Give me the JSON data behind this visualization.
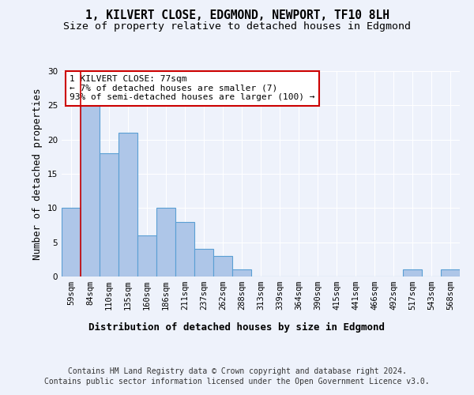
{
  "title": "1, KILVERT CLOSE, EDGMOND, NEWPORT, TF10 8LH",
  "subtitle": "Size of property relative to detached houses in Edgmond",
  "xlabel": "Distribution of detached houses by size in Edgmond",
  "ylabel": "Number of detached properties",
  "categories": [
    "59sqm",
    "84sqm",
    "110sqm",
    "135sqm",
    "160sqm",
    "186sqm",
    "211sqm",
    "237sqm",
    "262sqm",
    "288sqm",
    "313sqm",
    "339sqm",
    "364sqm",
    "390sqm",
    "415sqm",
    "441sqm",
    "466sqm",
    "492sqm",
    "517sqm",
    "543sqm",
    "568sqm"
  ],
  "values": [
    10,
    25,
    18,
    21,
    6,
    10,
    8,
    4,
    3,
    1,
    0,
    0,
    0,
    0,
    0,
    0,
    0,
    0,
    1,
    0,
    1
  ],
  "bar_color": "#aec6e8",
  "bar_edgecolor": "#5a9fd4",
  "bar_linewidth": 0.8,
  "ylim": [
    0,
    30
  ],
  "yticks": [
    0,
    5,
    10,
    15,
    20,
    25,
    30
  ],
  "vline_x": 0.5,
  "vline_color": "#cc0000",
  "annotation_text": "1 KILVERT CLOSE: 77sqm\n← 7% of detached houses are smaller (7)\n93% of semi-detached houses are larger (100) →",
  "annotation_box_color": "#ffffff",
  "annotation_box_edgecolor": "#cc0000",
  "footer_line1": "Contains HM Land Registry data © Crown copyright and database right 2024.",
  "footer_line2": "Contains public sector information licensed under the Open Government Licence v3.0.",
  "background_color": "#eef2fb",
  "grid_color": "#ffffff",
  "title_fontsize": 10.5,
  "subtitle_fontsize": 9.5,
  "xlabel_fontsize": 9,
  "ylabel_fontsize": 9,
  "tick_fontsize": 7.5,
  "annotation_fontsize": 8,
  "footer_fontsize": 7
}
